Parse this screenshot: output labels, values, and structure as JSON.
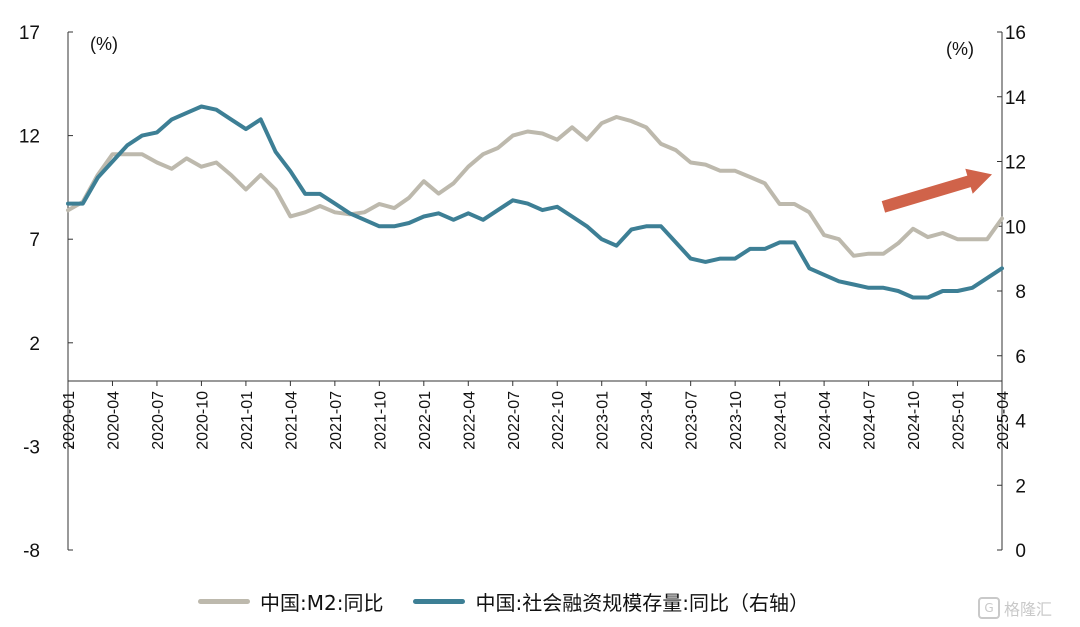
{
  "chart_data": {
    "type": "line",
    "left_unit": "(%)",
    "right_unit": "(%)",
    "left_axis": {
      "min": -8,
      "max": 17,
      "ticks": [
        17,
        12,
        7,
        2,
        -3,
        -8
      ]
    },
    "right_axis": {
      "min": 0,
      "max": 16,
      "ticks": [
        16,
        14,
        12,
        10,
        8,
        6,
        4,
        2,
        0
      ]
    },
    "x_tick_labels": [
      "2020-01",
      "2020-04",
      "2020-07",
      "2020-10",
      "2021-01",
      "2021-04",
      "2021-07",
      "2021-10",
      "2022-01",
      "2022-04",
      "2022-07",
      "2022-10",
      "2023-01",
      "2023-04",
      "2023-07",
      "2023-10",
      "2024-01",
      "2024-04",
      "2024-07",
      "2024-10",
      "2025-01",
      "2025-04"
    ],
    "months": [
      "2020-01",
      "2020-02",
      "2020-03",
      "2020-04",
      "2020-05",
      "2020-06",
      "2020-07",
      "2020-08",
      "2020-09",
      "2020-10",
      "2020-11",
      "2020-12",
      "2021-01",
      "2021-02",
      "2021-03",
      "2021-04",
      "2021-05",
      "2021-06",
      "2021-07",
      "2021-08",
      "2021-09",
      "2021-10",
      "2021-11",
      "2021-12",
      "2022-01",
      "2022-02",
      "2022-03",
      "2022-04",
      "2022-05",
      "2022-06",
      "2022-07",
      "2022-08",
      "2022-09",
      "2022-10",
      "2022-11",
      "2022-12",
      "2023-01",
      "2023-02",
      "2023-03",
      "2023-04",
      "2023-05",
      "2023-06",
      "2023-07",
      "2023-08",
      "2023-09",
      "2023-10",
      "2023-11",
      "2023-12",
      "2024-01",
      "2024-02",
      "2024-03",
      "2024-04",
      "2024-05",
      "2024-06",
      "2024-07",
      "2024-08",
      "2024-09",
      "2024-10",
      "2024-11",
      "2024-12",
      "2025-01",
      "2025-02",
      "2025-03",
      "2025-04"
    ],
    "series": [
      {
        "name": "中国:M2:同比",
        "axis": "left",
        "color": "#bdb9ad",
        "values": [
          8.4,
          8.8,
          10.1,
          11.1,
          11.1,
          11.1,
          10.7,
          10.4,
          10.9,
          10.5,
          10.7,
          10.1,
          9.4,
          10.1,
          9.4,
          8.1,
          8.3,
          8.6,
          8.3,
          8.2,
          8.3,
          8.7,
          8.5,
          9.0,
          9.8,
          9.2,
          9.7,
          10.5,
          11.1,
          11.4,
          12.0,
          12.2,
          12.1,
          11.8,
          12.4,
          11.8,
          12.6,
          12.9,
          12.7,
          12.4,
          11.6,
          11.3,
          10.7,
          10.6,
          10.3,
          10.3,
          10.0,
          9.7,
          8.7,
          8.7,
          8.3,
          7.2,
          7.0,
          6.2,
          6.3,
          6.3,
          6.8,
          7.5,
          7.1,
          7.3,
          7.0,
          7.0,
          7.0,
          8.0
        ]
      },
      {
        "name": "中国:社会融资规模存量:同比（右轴）",
        "axis": "right",
        "color": "#3d7f95",
        "values": [
          10.7,
          10.7,
          11.5,
          12.0,
          12.5,
          12.8,
          12.9,
          13.3,
          13.5,
          13.7,
          13.6,
          13.3,
          13.0,
          13.3,
          12.3,
          11.7,
          11.0,
          11.0,
          10.7,
          10.4,
          10.2,
          10.0,
          10.0,
          10.1,
          10.3,
          10.4,
          10.2,
          10.4,
          10.2,
          10.5,
          10.8,
          10.7,
          10.5,
          10.6,
          10.3,
          10.0,
          9.6,
          9.4,
          9.9,
          10.0,
          10.0,
          9.5,
          9.0,
          8.9,
          9.0,
          9.0,
          9.3,
          9.3,
          9.5,
          9.5,
          8.7,
          8.5,
          8.3,
          8.2,
          8.1,
          8.1,
          8.0,
          7.8,
          7.8,
          8.0,
          8.0,
          8.1,
          8.4,
          8.7
        ]
      }
    ],
    "arrow": {
      "color": "#d0634a",
      "from": {
        "x": "2024-08",
        "right_value": 10.6
      },
      "to": {
        "x": "2025-04",
        "right_value": 11.6
      }
    }
  },
  "legend": {
    "items": [
      {
        "label": "中国:M2:同比",
        "color": "#bdb9ad"
      },
      {
        "label": "中国:社会融资规模存量:同比（右轴）",
        "color": "#3d7f95"
      }
    ]
  },
  "watermark": {
    "icon": "gelonghui-logo-icon",
    "text": "格隆汇"
  }
}
